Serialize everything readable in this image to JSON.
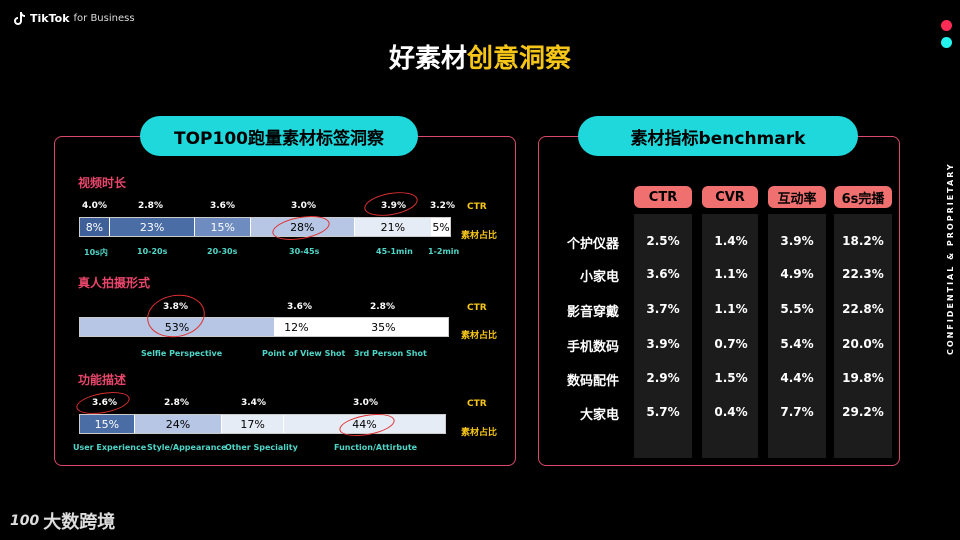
{
  "brand": {
    "tiktok": "TikTok",
    "for_business": "for Business",
    "bottom_brand": "大数跨境",
    "bottom_mark": "100"
  },
  "title": {
    "part1": "好素材",
    "part2": "创意洞察"
  },
  "side_text": "CONFIDENTIAL & PROPRIETARY",
  "left_panel": {
    "pill": "TOP100跑量素材标签洞察",
    "ctr_label": "CTR",
    "share_label": "素材占比",
    "sections": [
      {
        "title": "视频时长",
        "ctr": [
          "4.0%",
          "2.8%",
          "3.6%",
          "3.0%",
          "3.9%",
          "3.2%"
        ],
        "shares": [
          "8%",
          "23%",
          "15%",
          "28%",
          "21%",
          "5%"
        ],
        "share_values": [
          8,
          23,
          15,
          28,
          21,
          5
        ],
        "categories": [
          "10s内",
          "10-20s",
          "20-30s",
          "30-45s",
          "45-1min",
          "1-2min"
        ]
      },
      {
        "title": "真人拍摄形式",
        "ctr": [
          "3.8%",
          "3.6%",
          "2.8%"
        ],
        "shares": [
          "53%",
          "12%",
          "35%"
        ],
        "share_values": [
          53,
          12,
          35
        ],
        "categories": [
          "Selfie Perspective",
          "Point of View Shot",
          "3rd Person Shot"
        ]
      },
      {
        "title": "功能描述",
        "ctr": [
          "3.6%",
          "2.8%",
          "3.4%",
          "3.0%"
        ],
        "shares": [
          "15%",
          "24%",
          "17%",
          "44%"
        ],
        "share_values": [
          15,
          24,
          17,
          44
        ],
        "categories": [
          "User Experience",
          "Style/Appearance",
          "Other Speciality",
          "Function/Attirbute"
        ]
      }
    ]
  },
  "right_panel": {
    "pill": "素材指标benchmark",
    "headers": [
      "CTR",
      "CVR",
      "互动率",
      "6s完播"
    ],
    "rows": [
      {
        "label": "个护仪器",
        "values": [
          "2.5%",
          "1.4%",
          "3.9%",
          "18.2%"
        ]
      },
      {
        "label": "小家电",
        "values": [
          "3.6%",
          "1.1%",
          "4.9%",
          "22.3%"
        ]
      },
      {
        "label": "影音穿戴",
        "values": [
          "3.7%",
          "1.1%",
          "5.5%",
          "22.8%"
        ]
      },
      {
        "label": "手机数码",
        "values": [
          "3.9%",
          "0.7%",
          "5.4%",
          "20.0%"
        ]
      },
      {
        "label": "数码配件",
        "values": [
          "2.9%",
          "1.5%",
          "4.4%",
          "19.8%"
        ]
      },
      {
        "label": "大家电",
        "values": [
          "5.7%",
          "0.4%",
          "7.7%",
          "29.2%"
        ]
      }
    ]
  },
  "colors": {
    "accent_cyan": "#1fd8dc",
    "accent_pink": "#e8466a",
    "accent_yellow": "#f5c518",
    "dot_red": "#ff2d55",
    "dot_cyan": "#25f4ee"
  }
}
